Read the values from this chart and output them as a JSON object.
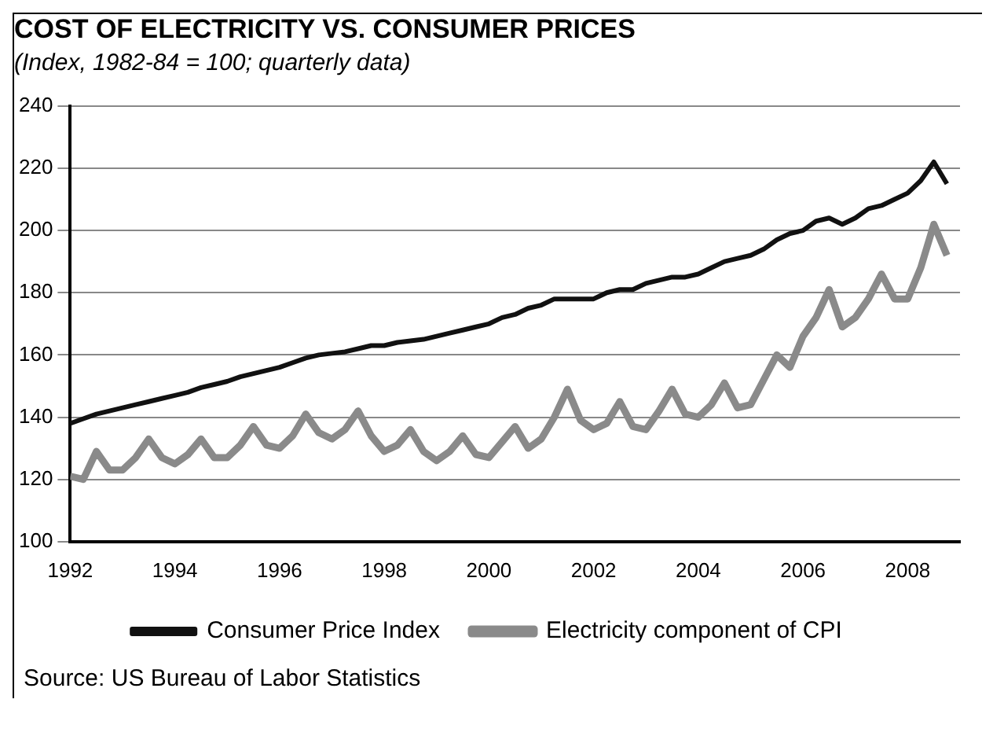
{
  "chart_data": {
    "type": "line",
    "title": "COST OF ELECTRICITY VS. CONSUMER PRICES",
    "subtitle": "(Index, 1982-84 = 100; quarterly data)",
    "x": [
      1992,
      1992.25,
      1992.5,
      1992.75,
      1993,
      1993.25,
      1993.5,
      1993.75,
      1994,
      1994.25,
      1994.5,
      1994.75,
      1995,
      1995.25,
      1995.5,
      1995.75,
      1996,
      1996.25,
      1996.5,
      1996.75,
      1997,
      1997.25,
      1997.5,
      1997.75,
      1998,
      1998.25,
      1998.5,
      1998.75,
      1999,
      1999.25,
      1999.5,
      1999.75,
      2000,
      2000.25,
      2000.5,
      2000.75,
      2001,
      2001.25,
      2001.5,
      2001.75,
      2002,
      2002.25,
      2002.5,
      2002.75,
      2003,
      2003.25,
      2003.5,
      2003.75,
      2004,
      2004.25,
      2004.5,
      2004.75,
      2005,
      2005.25,
      2005.5,
      2005.75,
      2006,
      2006.25,
      2006.5,
      2006.75,
      2007,
      2007.25,
      2007.5,
      2007.75,
      2008,
      2008.25,
      2008.5,
      2008.75
    ],
    "series": [
      {
        "name": "Consumer Price Index",
        "color": "#111111",
        "values": [
          138,
          139.5,
          141,
          142,
          143,
          144,
          145,
          146,
          147,
          148,
          149.5,
          150.5,
          151.5,
          153,
          154,
          155,
          156,
          157.5,
          159,
          160,
          160.5,
          161,
          162,
          163,
          163,
          164,
          164.5,
          165,
          166,
          167,
          168,
          169,
          170,
          172,
          173,
          175,
          176,
          178,
          178,
          178,
          178,
          180,
          181,
          181,
          183,
          184,
          185,
          185,
          186,
          188,
          190,
          191,
          192,
          194,
          197,
          199,
          200,
          203,
          204,
          202,
          204,
          207,
          208,
          210,
          212,
          216,
          222,
          215
        ]
      },
      {
        "name": "Electricity component of CPI",
        "color": "#8a8a8a",
        "values": [
          121,
          120,
          129,
          123,
          123,
          127,
          133,
          127,
          125,
          128,
          133,
          127,
          127,
          131,
          137,
          131,
          130,
          134,
          141,
          135,
          133,
          136,
          142,
          134,
          129,
          131,
          136,
          129,
          126,
          129,
          134,
          128,
          127,
          132,
          137,
          130,
          133,
          140,
          149,
          139,
          136,
          138,
          145,
          137,
          136,
          142,
          149,
          141,
          140,
          144,
          151,
          143,
          144,
          152,
          160,
          156,
          166,
          172,
          181,
          169,
          172,
          178,
          186,
          178,
          178,
          188,
          202,
          192
        ]
      }
    ],
    "xlim": [
      1992,
      2009
    ],
    "xticks": [
      1992,
      1994,
      1996,
      1998,
      2000,
      2002,
      2004,
      2006,
      2008
    ],
    "ylim": [
      100,
      240
    ],
    "yticks": [
      100,
      120,
      140,
      160,
      180,
      200,
      220,
      240
    ],
    "grid": "y",
    "legend": "bottom",
    "marker": "none",
    "line_style": "solid",
    "annotations": [
      "Source: US Bureau of Labor Statistics"
    ]
  }
}
